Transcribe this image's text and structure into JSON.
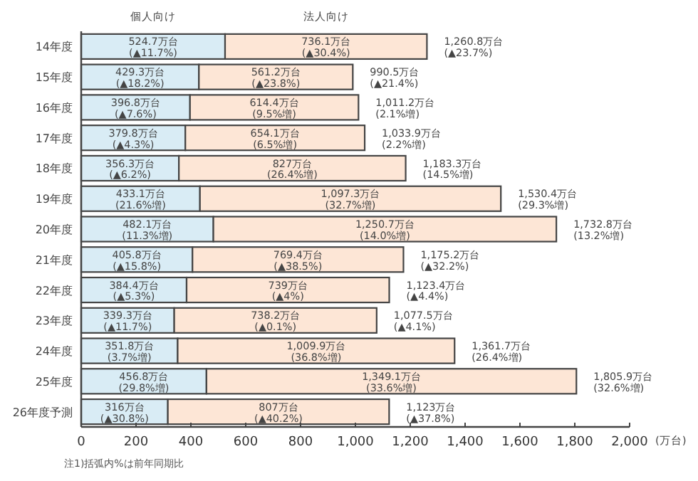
{
  "chart_data": {
    "type": "bar",
    "orientation": "horizontal",
    "stacked": true,
    "categories": [
      "14年度",
      "15年度",
      "16年度",
      "17年度",
      "18年度",
      "19年度",
      "20年度",
      "21年度",
      "22年度",
      "23年度",
      "24年度",
      "25年度",
      "26年度予測"
    ],
    "series": [
      {
        "name": "個人向け",
        "color": "#d9ecf5",
        "values": [
          524.7,
          429.3,
          396.8,
          379.8,
          356.3,
          433.1,
          482.1,
          405.8,
          384.4,
          339.3,
          351.8,
          456.8,
          316
        ],
        "value_labels": [
          "524.7万台\n(▲11.7%)",
          "429.3万台\n(▲18.2%)",
          "396.8万台\n(▲7.6%)",
          "379.8万台\n(▲4.3%)",
          "356.3万台\n(▲6.2%)",
          "433.1万台\n(21.6%増)",
          "482.1万台\n(11.3%増)",
          "405.8万台\n(▲15.8%)",
          "384.4万台\n(▲5.3%)",
          "339.3万台\n(▲11.7%)",
          "351.8万台\n(3.7%増)",
          "456.8万台\n(29.8%増)",
          "316万台\n(▲30.8%)"
        ]
      },
      {
        "name": "法人向け",
        "color": "#fde6d6",
        "values": [
          736.1,
          561.2,
          614.4,
          654.1,
          827,
          1097.3,
          1250.7,
          769.4,
          739,
          738.2,
          1009.9,
          1349.1,
          807
        ],
        "value_labels": [
          "736.1万台\n(▲30.4%)",
          "561.2万台\n(▲23.8%)",
          "614.4万台\n(9.5%増)",
          "654.1万台\n(6.5%増)",
          "827万台\n(26.4%増)",
          "1,097.3万台\n(32.7%増)",
          "1,250.7万台\n(14.0%増)",
          "769.4万台\n(▲38.5%)",
          "739万台\n(▲4%)",
          "738.2万台\n(▲0.1%)",
          "1,009.9万台\n(36.8%増)",
          "1,349.1万台\n(33.6%増)",
          "807万台\n(▲40.2%)"
        ]
      }
    ],
    "totals": [
      "1,260.8万台\n(▲23.7%)",
      "990.5万台\n(▲21.4%)",
      "1,011.2万台\n(2.1%増)",
      "1,033.9万台\n(2.2%増)",
      "1,183.3万台\n(14.5%増)",
      "1,530.4万台\n(29.3%増)",
      "1,732.8万台\n(13.2%増)",
      "1,175.2万台\n(▲32.2%)",
      "1,123.4万台\n(▲4.4%)",
      "1,077.5万台\n(▲4.1%)",
      "1,361.7万台\n(26.4%増)",
      "1,805.9万台\n(32.6%増)",
      "1,123万台\n(▲37.8%)"
    ],
    "xlabel": "(万台)",
    "xlim": [
      0,
      2000
    ],
    "xticks": [
      0,
      200,
      400,
      600,
      800,
      {
        "value": 1000,
        "label": "1,000"
      },
      {
        "value": 1200,
        "label": "1,200"
      },
      {
        "value": 1400,
        "label": "1,400"
      },
      {
        "value": 1600,
        "label": "1,600"
      },
      {
        "value": 1800,
        "label": "1,800"
      },
      {
        "value": 2000,
        "label": "2,000"
      }
    ],
    "annotations": [
      "注1)括弧内%は前年同期比"
    ]
  }
}
